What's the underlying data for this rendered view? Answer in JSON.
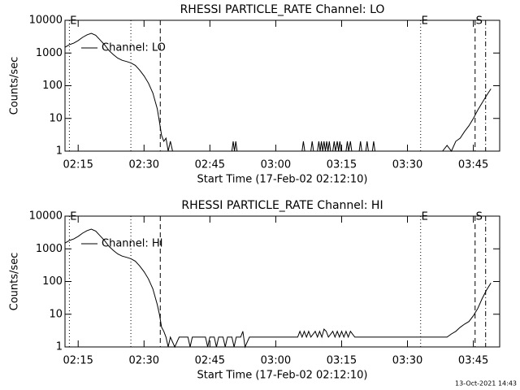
{
  "chart_data": [
    {
      "type": "line",
      "title": "RHESSI PARTICLE_RATE Channel: LO",
      "xlabel": "Start Time (17-Feb-02 02:12:10)",
      "ylabel": "Counts/sec",
      "log_y": true,
      "legend": "upper left",
      "xlim": [
        132,
        231
      ],
      "ylim": [
        1,
        10000
      ],
      "yticks": [
        1,
        10,
        100,
        1000,
        10000
      ],
      "xticks": [
        {
          "value": 135,
          "label": "02:15"
        },
        {
          "value": 150,
          "label": "02:30"
        },
        {
          "value": 165,
          "label": "02:45"
        },
        {
          "value": 180,
          "label": "03:00"
        },
        {
          "value": 195,
          "label": "03:15"
        },
        {
          "value": 210,
          "label": "03:30"
        },
        {
          "value": 225,
          "label": "03:45"
        }
      ],
      "markers": [
        {
          "x": 133,
          "style": "dotted",
          "label": "E"
        },
        {
          "x": 147,
          "style": "dotted"
        },
        {
          "x": 153.7,
          "style": "dashed"
        },
        {
          "x": 213,
          "style": "dotted",
          "label": "E"
        },
        {
          "x": 225.4,
          "style": "dashed",
          "label": "S"
        },
        {
          "x": 227.8,
          "style": "dashdot"
        }
      ],
      "series": [
        {
          "name": "Channel: LO",
          "color": "#000000",
          "x": [
            132,
            133,
            134,
            135,
            136,
            137,
            138,
            139,
            140,
            141,
            142,
            143,
            144,
            145,
            146,
            147,
            148,
            149,
            150,
            151,
            152,
            153,
            153.5,
            154,
            154.5,
            155,
            155.5,
            156,
            156.5,
            170,
            170.3,
            170.6,
            170.9,
            171.2,
            186,
            186.3,
            186.6,
            188,
            188.3,
            188.6,
            189.5,
            189.8,
            190.1,
            190.4,
            190.7,
            191,
            191.3,
            191.6,
            191.9,
            192.2,
            192.5,
            193,
            193.3,
            193.6,
            194,
            194.3,
            194.6,
            194.9,
            196,
            196.3,
            196.6,
            197,
            197.3,
            199,
            199.3,
            199.6,
            200.5,
            200.8,
            201.1,
            202,
            202.3,
            202.6,
            218,
            219,
            220,
            221,
            222,
            223,
            224,
            225,
            226,
            227,
            228,
            229
          ],
          "values": [
            1500,
            1800,
            2000,
            2400,
            3000,
            3600,
            4000,
            3500,
            2500,
            1800,
            1200,
            900,
            700,
            600,
            550,
            500,
            420,
            300,
            200,
            120,
            60,
            20,
            8,
            3,
            2,
            2.5,
            1,
            2,
            1,
            1,
            2,
            1,
            2,
            1,
            1,
            2,
            1,
            1,
            2,
            1,
            1,
            2,
            1,
            2,
            1,
            2,
            1,
            2,
            1,
            2,
            1,
            1,
            2,
            1,
            2,
            1,
            2,
            1,
            1,
            2,
            1,
            2,
            1,
            1,
            2,
            1,
            1,
            2,
            1,
            1,
            2,
            1,
            1,
            1.5,
            1,
            2,
            2.5,
            4,
            6,
            10,
            18,
            30,
            50,
            80
          ]
        }
      ]
    },
    {
      "type": "line",
      "title": "RHESSI PARTICLE_RATE Channel: HI",
      "xlabel": "Start Time (17-Feb-02 02:12:10)",
      "ylabel": "Counts/sec",
      "log_y": true,
      "legend": "upper left",
      "xlim": [
        132,
        231
      ],
      "ylim": [
        1,
        10000
      ],
      "yticks": [
        1,
        10,
        100,
        1000,
        10000
      ],
      "xticks": [
        {
          "value": 135,
          "label": "02:15"
        },
        {
          "value": 150,
          "label": "02:30"
        },
        {
          "value": 165,
          "label": "02:45"
        },
        {
          "value": 180,
          "label": "03:00"
        },
        {
          "value": 195,
          "label": "03:15"
        },
        {
          "value": 210,
          "label": "03:30"
        },
        {
          "value": 225,
          "label": "03:45"
        }
      ],
      "markers": [
        {
          "x": 133,
          "style": "dotted",
          "label": "E"
        },
        {
          "x": 147,
          "style": "dotted"
        },
        {
          "x": 153.7,
          "style": "dashed"
        },
        {
          "x": 213,
          "style": "dotted",
          "label": "E"
        },
        {
          "x": 225.4,
          "style": "dashed",
          "label": "S"
        },
        {
          "x": 227.8,
          "style": "dashdot"
        }
      ],
      "series": [
        {
          "name": "Channel: HI",
          "color": "#000000",
          "x": [
            132,
            133,
            134,
            135,
            136,
            137,
            138,
            139,
            140,
            141,
            142,
            143,
            144,
            145,
            146,
            147,
            148,
            149,
            150,
            151,
            152,
            153,
            153.5,
            154,
            154.5,
            155,
            155.5,
            156,
            157,
            158,
            160,
            160.5,
            161,
            164,
            164.5,
            165,
            166,
            166.5,
            167,
            168,
            168.5,
            169,
            170,
            170.5,
            171,
            172,
            172.5,
            173,
            174,
            176,
            178,
            180,
            182,
            184,
            185,
            185.5,
            186,
            186.5,
            187,
            187.5,
            188,
            189,
            189.5,
            190,
            190.5,
            191,
            191.5,
            192,
            193,
            193.5,
            194,
            194.5,
            195,
            195.5,
            196,
            196.5,
            197,
            198,
            200,
            205,
            210,
            215,
            218,
            219,
            220,
            221,
            222,
            223,
            224,
            225,
            226,
            227,
            228,
            229
          ],
          "values": [
            1500,
            1800,
            2000,
            2400,
            3000,
            3600,
            4000,
            3500,
            2500,
            1800,
            1200,
            900,
            700,
            600,
            550,
            500,
            420,
            300,
            200,
            120,
            60,
            20,
            10,
            4,
            3,
            2,
            1,
            2,
            1,
            2,
            2,
            1,
            2,
            2,
            1,
            2,
            2,
            1,
            2,
            2,
            1,
            2,
            2,
            1,
            2,
            2,
            3,
            1,
            2,
            2,
            2,
            2,
            2,
            2,
            2,
            3,
            2,
            3,
            2,
            3,
            2,
            3,
            2,
            3,
            2,
            3.5,
            3,
            2,
            3,
            2,
            3,
            2,
            3,
            2,
            3,
            2,
            3,
            2,
            2,
            2,
            2,
            2,
            2,
            2,
            2.5,
            3,
            4,
            5,
            6,
            9,
            15,
            30,
            55,
            90
          ]
        }
      ]
    }
  ],
  "footer": "13-Oct-2021 14:43"
}
